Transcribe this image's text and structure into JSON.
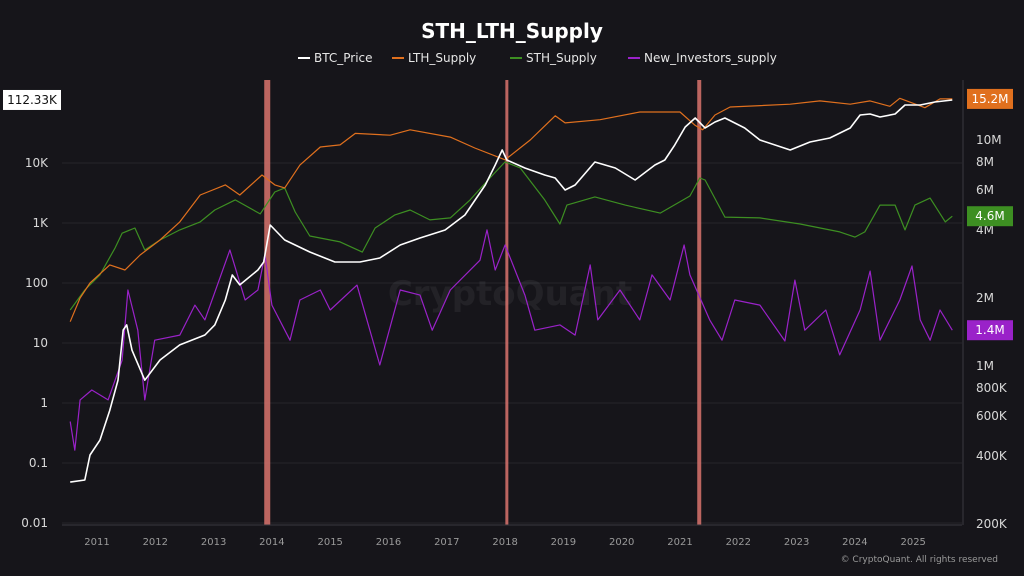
{
  "chart_data": {
    "type": "line",
    "title": "STH_LTH_Supply",
    "legend_position": "top",
    "grid": true,
    "footer": "© CryptoQuant. All rights reserved",
    "watermark": "CryptoQuant",
    "x_ticks": [
      "2011",
      "2012",
      "2013",
      "2014",
      "2015",
      "2016",
      "2017",
      "2018",
      "2019",
      "2020",
      "2021",
      "2022",
      "2023",
      "2024",
      "2025"
    ],
    "xlim": [
      2010.45,
      2025.75
    ],
    "left_axis": {
      "scale": "log",
      "ylim": [
        0.01,
        200000
      ],
      "ticks": [
        "0.01",
        "0.1",
        "1",
        "10",
        "100",
        "1K",
        "10K"
      ],
      "tick_values": [
        0.01,
        0.1,
        1,
        10,
        100,
        1000,
        10000
      ],
      "current_label": "112.33K"
    },
    "right_axis": {
      "scale": "log",
      "ylim": [
        200000,
        17000000
      ],
      "ticks": [
        "200K",
        "400K",
        "600K",
        "800K",
        "1M",
        "2M",
        "4M",
        "6M",
        "8M",
        "10M"
      ],
      "tick_values": [
        200000,
        400000,
        600000,
        800000,
        1000000,
        2000000,
        4000000,
        6000000,
        8000000,
        10000000
      ]
    },
    "highlights": [
      2013.92,
      2018.03,
      2021.33
    ],
    "highlight_color": "#d9736d",
    "series": [
      {
        "name": "BTC_Price",
        "axis": "left",
        "color": "#ffffff",
        "points": [
          [
            2010.54,
            0.048
          ],
          [
            2010.79,
            0.052
          ],
          [
            2010.88,
            0.136
          ],
          [
            2011.05,
            0.24
          ],
          [
            2011.22,
            0.76
          ],
          [
            2011.36,
            2.4
          ],
          [
            2011.45,
            16.5
          ],
          [
            2011.51,
            20
          ],
          [
            2011.6,
            7.6
          ],
          [
            2011.82,
            2.4
          ],
          [
            2012.08,
            5.2
          ],
          [
            2012.42,
            9.3
          ],
          [
            2012.85,
            13.6
          ],
          [
            2013.02,
            20
          ],
          [
            2013.2,
            52
          ],
          [
            2013.32,
            136
          ],
          [
            2013.45,
            93
          ],
          [
            2013.76,
            165
          ],
          [
            2013.86,
            224
          ],
          [
            2013.97,
            926
          ],
          [
            2014.22,
            521
          ],
          [
            2014.65,
            329
          ],
          [
            2015.08,
            224
          ],
          [
            2015.51,
            224
          ],
          [
            2015.85,
            261
          ],
          [
            2016.2,
            430
          ],
          [
            2016.54,
            562
          ],
          [
            2016.97,
            764
          ],
          [
            2017.31,
            1360
          ],
          [
            2017.66,
            4300
          ],
          [
            2017.83,
            9260
          ],
          [
            2017.95,
            16500
          ],
          [
            2018.03,
            11200
          ],
          [
            2018.34,
            8250
          ],
          [
            2018.68,
            6310
          ],
          [
            2018.86,
            5620
          ],
          [
            2019.03,
            3550
          ],
          [
            2019.2,
            4300
          ],
          [
            2019.54,
            10400
          ],
          [
            2019.89,
            8250
          ],
          [
            2020.23,
            5210
          ],
          [
            2020.57,
            9260
          ],
          [
            2020.74,
            11200
          ],
          [
            2020.91,
            20000
          ],
          [
            2021.09,
            39800
          ],
          [
            2021.26,
            56200
          ],
          [
            2021.43,
            38300
          ],
          [
            2021.6,
            48200
          ],
          [
            2021.77,
            56200
          ],
          [
            2022.11,
            38300
          ],
          [
            2022.37,
            24200
          ],
          [
            2022.89,
            16500
          ],
          [
            2023.23,
            22400
          ],
          [
            2023.57,
            26100
          ],
          [
            2023.92,
            38300
          ],
          [
            2024.09,
            63100
          ],
          [
            2024.26,
            65600
          ],
          [
            2024.43,
            58400
          ],
          [
            2024.69,
            65600
          ],
          [
            2024.86,
            92600
          ],
          [
            2025.12,
            92600
          ],
          [
            2025.37,
            104000
          ],
          [
            2025.67,
            112330
          ]
        ]
      },
      {
        "name": "LTH_Supply",
        "axis": "right",
        "color": "#e0701e",
        "current_label": "15.2M",
        "points": [
          [
            2010.54,
            1570000
          ],
          [
            2010.71,
            2000000
          ],
          [
            2010.88,
            2330000
          ],
          [
            2011.22,
            2800000
          ],
          [
            2011.48,
            2660000
          ],
          [
            2011.74,
            3100000
          ],
          [
            2012.08,
            3610000
          ],
          [
            2012.42,
            4340000
          ],
          [
            2012.77,
            5710000
          ],
          [
            2013.2,
            6330000
          ],
          [
            2013.45,
            5710000
          ],
          [
            2013.83,
            7000000
          ],
          [
            2014.05,
            6330000
          ],
          [
            2014.22,
            6140000
          ],
          [
            2014.48,
            7740000
          ],
          [
            2014.83,
            9310000
          ],
          [
            2015.17,
            9510000
          ],
          [
            2015.43,
            10700000
          ],
          [
            2016.03,
            10500000
          ],
          [
            2016.37,
            11100000
          ],
          [
            2017.06,
            10300000
          ],
          [
            2017.48,
            9220000
          ],
          [
            2018.0,
            8170000
          ],
          [
            2018.43,
            10000000
          ],
          [
            2018.86,
            12800000
          ],
          [
            2019.03,
            11900000
          ],
          [
            2019.63,
            12300000
          ],
          [
            2020.31,
            13300000
          ],
          [
            2021.0,
            13300000
          ],
          [
            2021.26,
            11600000
          ],
          [
            2021.39,
            11100000
          ],
          [
            2021.6,
            12900000
          ],
          [
            2021.86,
            14000000
          ],
          [
            2022.89,
            14400000
          ],
          [
            2023.4,
            14900000
          ],
          [
            2023.92,
            14400000
          ],
          [
            2024.26,
            14900000
          ],
          [
            2024.6,
            14100000
          ],
          [
            2024.77,
            15300000
          ],
          [
            2025.2,
            13900000
          ],
          [
            2025.46,
            15200000
          ],
          [
            2025.67,
            15200000
          ]
        ]
      },
      {
        "name": "STH_Supply",
        "axis": "right",
        "color": "#3d8f22",
        "current_label": "4.6M",
        "points": [
          [
            2010.54,
            1770000
          ],
          [
            2010.79,
            2170000
          ],
          [
            2011.05,
            2530000
          ],
          [
            2011.31,
            3330000
          ],
          [
            2011.43,
            3870000
          ],
          [
            2011.65,
            4080000
          ],
          [
            2011.82,
            3260000
          ],
          [
            2012.08,
            3610000
          ],
          [
            2012.42,
            4000000
          ],
          [
            2012.77,
            4340000
          ],
          [
            2013.02,
            4900000
          ],
          [
            2013.37,
            5430000
          ],
          [
            2013.8,
            4710000
          ],
          [
            2014.05,
            5890000
          ],
          [
            2014.22,
            6140000
          ],
          [
            2014.4,
            4800000
          ],
          [
            2014.65,
            3760000
          ],
          [
            2015.17,
            3540000
          ],
          [
            2015.55,
            3190000
          ],
          [
            2015.77,
            4080000
          ],
          [
            2016.11,
            4660000
          ],
          [
            2016.37,
            4900000
          ],
          [
            2016.71,
            4430000
          ],
          [
            2017.06,
            4520000
          ],
          [
            2017.4,
            5430000
          ],
          [
            2017.74,
            6790000
          ],
          [
            2018.0,
            8000000
          ],
          [
            2018.26,
            7520000
          ],
          [
            2018.68,
            5430000
          ],
          [
            2018.94,
            4250000
          ],
          [
            2019.06,
            5150000
          ],
          [
            2019.54,
            5600000
          ],
          [
            2020.06,
            5150000
          ],
          [
            2020.66,
            4750000
          ],
          [
            2021.17,
            5650000
          ],
          [
            2021.34,
            6790000
          ],
          [
            2021.43,
            6650000
          ],
          [
            2021.77,
            4560000
          ],
          [
            2022.37,
            4520000
          ],
          [
            2023.06,
            4250000
          ],
          [
            2023.74,
            3920000
          ],
          [
            2024.0,
            3720000
          ],
          [
            2024.17,
            3920000
          ],
          [
            2024.43,
            5150000
          ],
          [
            2024.69,
            5150000
          ],
          [
            2024.86,
            4000000
          ],
          [
            2025.03,
            5150000
          ],
          [
            2025.29,
            5530000
          ],
          [
            2025.55,
            4340000
          ],
          [
            2025.67,
            4600000
          ]
        ]
      },
      {
        "name": "New_Investors_supply",
        "axis": "right",
        "color": "#9a22c9",
        "current_label": "1.4M",
        "points": [
          [
            2010.54,
            568000
          ],
          [
            2010.62,
            424000
          ],
          [
            2010.71,
            708000
          ],
          [
            2010.91,
            783000
          ],
          [
            2011.19,
            708000
          ],
          [
            2011.43,
            1060000
          ],
          [
            2011.53,
            2170000
          ],
          [
            2011.7,
            1440000
          ],
          [
            2011.82,
            708000
          ],
          [
            2011.99,
            1300000
          ],
          [
            2012.42,
            1370000
          ],
          [
            2012.68,
            1860000
          ],
          [
            2012.85,
            1600000
          ],
          [
            2013.28,
            3260000
          ],
          [
            2013.54,
            1960000
          ],
          [
            2013.76,
            2170000
          ],
          [
            2013.88,
            3100000
          ],
          [
            2014.0,
            1860000
          ],
          [
            2014.31,
            1300000
          ],
          [
            2014.48,
            1960000
          ],
          [
            2014.83,
            2170000
          ],
          [
            2015.0,
            1770000
          ],
          [
            2015.46,
            2280000
          ],
          [
            2015.85,
            1010000
          ],
          [
            2016.2,
            2170000
          ],
          [
            2016.54,
            2060000
          ],
          [
            2016.75,
            1440000
          ],
          [
            2017.06,
            2170000
          ],
          [
            2017.57,
            2940000
          ],
          [
            2017.69,
            4000000
          ],
          [
            2017.83,
            2660000
          ],
          [
            2018.0,
            3430000
          ],
          [
            2018.34,
            2060000
          ],
          [
            2018.51,
            1440000
          ],
          [
            2018.94,
            1520000
          ],
          [
            2019.2,
            1370000
          ],
          [
            2019.46,
            2800000
          ],
          [
            2019.59,
            1600000
          ],
          [
            2019.97,
            2170000
          ],
          [
            2020.31,
            1600000
          ],
          [
            2020.52,
            2530000
          ],
          [
            2020.83,
            1960000
          ],
          [
            2021.07,
            3430000
          ],
          [
            2021.17,
            2530000
          ],
          [
            2021.51,
            1600000
          ],
          [
            2021.72,
            1300000
          ],
          [
            2021.94,
            1960000
          ],
          [
            2022.37,
            1860000
          ],
          [
            2022.8,
            1290000
          ],
          [
            2022.97,
            2400000
          ],
          [
            2023.14,
            1440000
          ],
          [
            2023.5,
            1770000
          ],
          [
            2023.74,
            1120000
          ],
          [
            2024.09,
            1770000
          ],
          [
            2024.26,
            2630000
          ],
          [
            2024.43,
            1300000
          ],
          [
            2024.77,
            1960000
          ],
          [
            2024.98,
            2770000
          ],
          [
            2025.12,
            1600000
          ],
          [
            2025.29,
            1300000
          ],
          [
            2025.46,
            1770000
          ],
          [
            2025.67,
            1440000
          ]
        ]
      }
    ]
  }
}
